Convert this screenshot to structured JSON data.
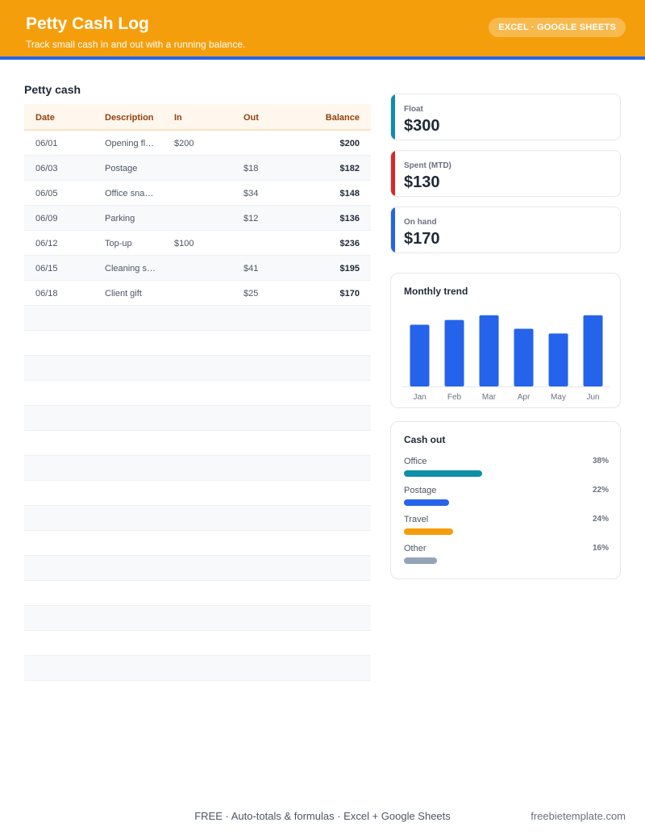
{
  "header": {
    "title": "Petty Cash Log",
    "subtitle": "Track small cash in and out with a running balance.",
    "badge": "EXCEL · GOOGLE SHEETS"
  },
  "log": {
    "title": "Petty cash",
    "columns": [
      "Date",
      "Description",
      "In",
      "Out",
      "Balance"
    ],
    "rows": [
      {
        "date": "06/01",
        "desc": "Opening fl…",
        "in": "$200",
        "out": "",
        "balance": "$200"
      },
      {
        "date": "06/03",
        "desc": "Postage",
        "in": "",
        "out": "$18",
        "balance": "$182"
      },
      {
        "date": "06/05",
        "desc": "Office sna…",
        "in": "",
        "out": "$34",
        "balance": "$148"
      },
      {
        "date": "06/09",
        "desc": "Parking",
        "in": "",
        "out": "$12",
        "balance": "$136"
      },
      {
        "date": "06/12",
        "desc": "Top-up",
        "in": "$100",
        "out": "",
        "balance": "$236"
      },
      {
        "date": "06/15",
        "desc": "Cleaning s…",
        "in": "",
        "out": "$41",
        "balance": "$195"
      },
      {
        "date": "06/18",
        "desc": "Client gift",
        "in": "",
        "out": "$25",
        "balance": "$170"
      }
    ],
    "empty_rows": 15
  },
  "kpis": [
    {
      "label": "Float",
      "value": "$300",
      "color": "#0e8fa8"
    },
    {
      "label": "Spent (MTD)",
      "value": "$130",
      "color": "#dc2626"
    },
    {
      "label": "On hand",
      "value": "$170",
      "color": "#2563eb"
    }
  ],
  "trend": {
    "title": "Monthly trend"
  },
  "chart_data": {
    "type": "bar",
    "categories": [
      "Jan",
      "Feb",
      "Mar",
      "Apr",
      "May",
      "Jun"
    ],
    "values": [
      78,
      84,
      90,
      73,
      67,
      90
    ],
    "ylim": [
      0,
      100
    ],
    "color": "#2563eb",
    "grid": false
  },
  "cash_out": {
    "title": "Cash out",
    "items": [
      {
        "name": "Office",
        "pct_label": "38%",
        "pct": 38,
        "color": "#0e8fa8"
      },
      {
        "name": "Postage",
        "pct_label": "22%",
        "pct": 22,
        "color": "#2563eb"
      },
      {
        "name": "Travel",
        "pct_label": "24%",
        "pct": 24,
        "color": "#f59e0b"
      },
      {
        "name": "Other",
        "pct_label": "16%",
        "pct": 16,
        "color": "#94a3b8"
      }
    ]
  },
  "footer": {
    "center": "FREE  ·  Auto-totals & formulas  ·  Excel + Google Sheets",
    "right": "freebietemplate.com"
  }
}
